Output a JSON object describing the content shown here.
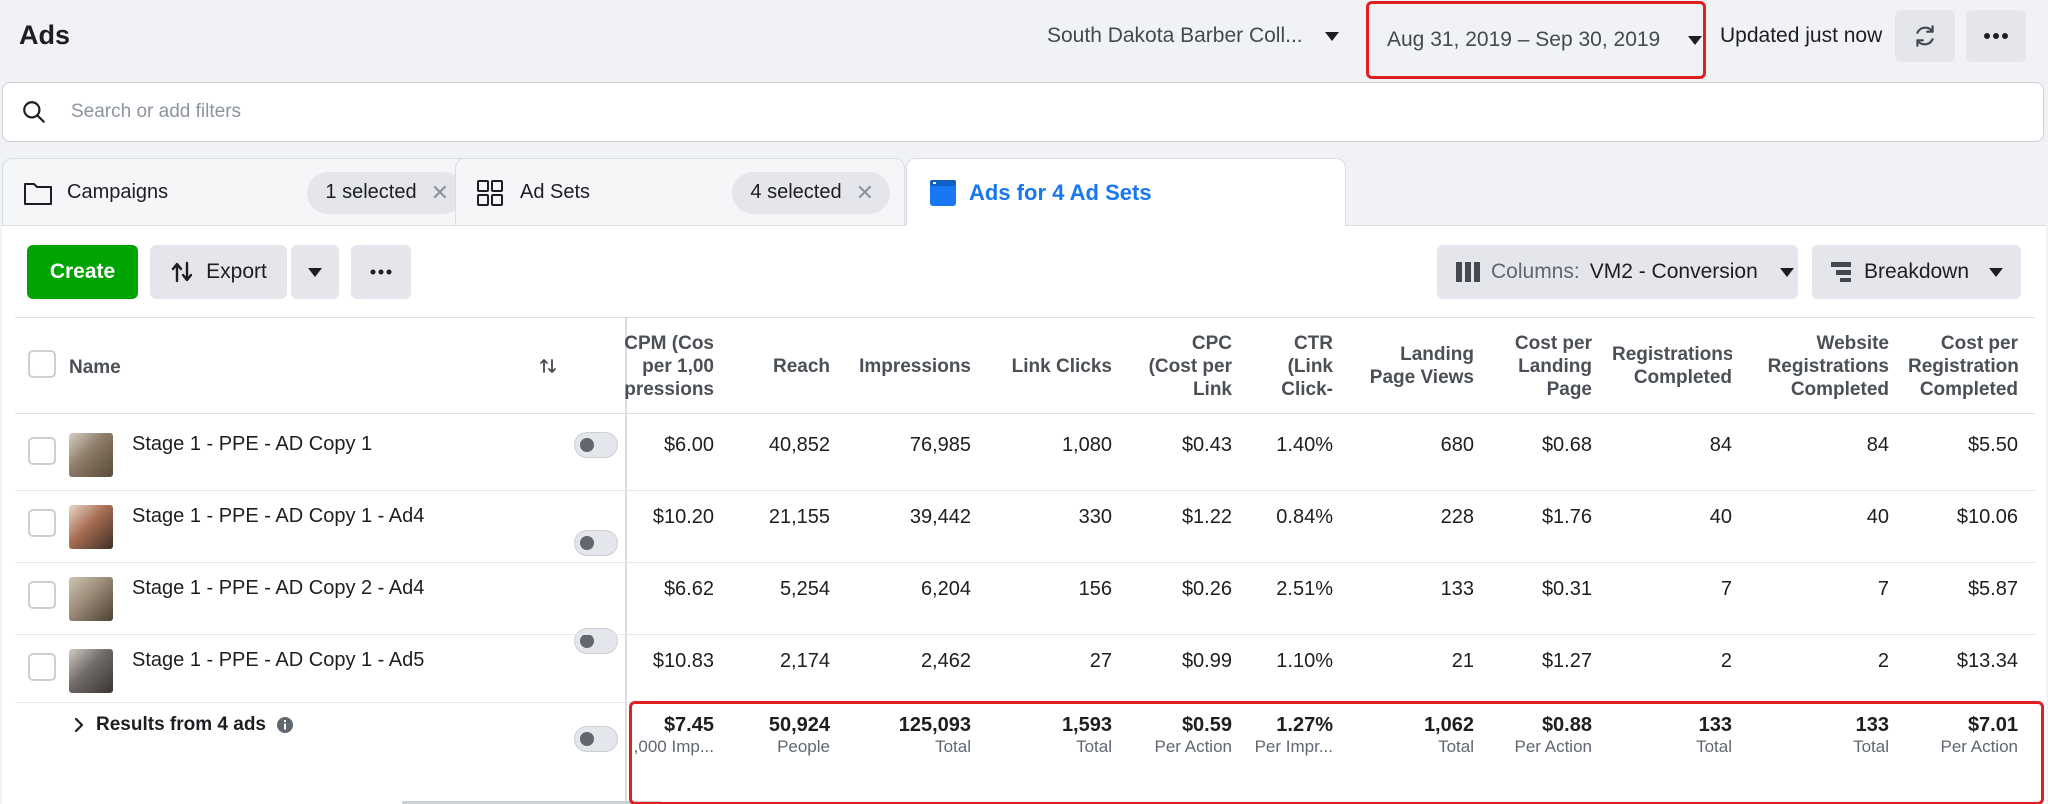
{
  "header": {
    "title": "Ads",
    "account_name": "South Dakota Barber Coll...",
    "date_range": "Aug 31, 2019 – Sep 30, 2019",
    "updated_text": "Updated just now"
  },
  "search": {
    "placeholder": "Search or add filters"
  },
  "tabs": {
    "campaigns": {
      "label": "Campaigns",
      "selected": "1 selected"
    },
    "adsets": {
      "label": "Ad Sets",
      "selected": "4 selected"
    },
    "ads": {
      "label": "Ads for 4 Ad Sets"
    }
  },
  "toolbar": {
    "create": "Create",
    "export": "Export",
    "columns_prefix": "Columns:",
    "columns_value": "VM2 - Conversion",
    "breakdown": "Breakdown"
  },
  "table": {
    "name_header": "Name",
    "headers": [
      [
        "CPM (Cos",
        "per 1,00",
        "pressions"
      ],
      [
        "Reach"
      ],
      [
        "Impressions"
      ],
      [
        "Link Clicks"
      ],
      [
        "CPC",
        "(Cost per",
        "Link"
      ],
      [
        "CTR",
        "(Link",
        "Click-"
      ],
      [
        "Landing",
        "Page Views"
      ],
      [
        "Cost per",
        "Landing",
        "Page"
      ],
      [
        "Registrations",
        "Completed"
      ],
      [
        "Website",
        "Registrations",
        "Completed"
      ],
      [
        "Cost per",
        "Registration",
        "Completed"
      ]
    ],
    "rows": [
      {
        "name": "Stage 1 - PPE - AD Copy 1",
        "values": [
          "$6.00",
          "40,852",
          "76,985",
          "1,080",
          "$0.43",
          "1.40%",
          "680",
          "$0.68",
          "84",
          "84",
          "$5.50"
        ]
      },
      {
        "name": "Stage 1 - PPE - AD Copy 1 - Ad4",
        "values": [
          "$10.20",
          "21,155",
          "39,442",
          "330",
          "$1.22",
          "0.84%",
          "228",
          "$1.76",
          "40",
          "40",
          "$10.06"
        ]
      },
      {
        "name": "Stage 1 - PPE - AD Copy 2 - Ad4",
        "values": [
          "$6.62",
          "5,254",
          "6,204",
          "156",
          "$0.26",
          "2.51%",
          "133",
          "$0.31",
          "7",
          "7",
          "$5.87"
        ]
      },
      {
        "name": "Stage 1 - PPE - AD Copy 1 - Ad5",
        "values": [
          "$10.83",
          "2,174",
          "2,462",
          "27",
          "$0.99",
          "1.10%",
          "21",
          "$1.27",
          "2",
          "2",
          "$13.34"
        ]
      }
    ],
    "totals": {
      "label": "Results from 4 ads",
      "values": [
        "$7.45",
        "50,924",
        "125,093",
        "1,593",
        "$0.59",
        "1.27%",
        "1,062",
        "$0.88",
        "133",
        "133",
        "$7.01"
      ],
      "subs": [
        ",000 Imp...",
        "People",
        "Total",
        "Total",
        "Per Action",
        "Per Impr...",
        "Total",
        "Per Action",
        "Total",
        "Total",
        "Per Action"
      ]
    }
  },
  "colors": {
    "accent": "#1877f2",
    "create": "#00a400",
    "highlight": "#e02020"
  }
}
